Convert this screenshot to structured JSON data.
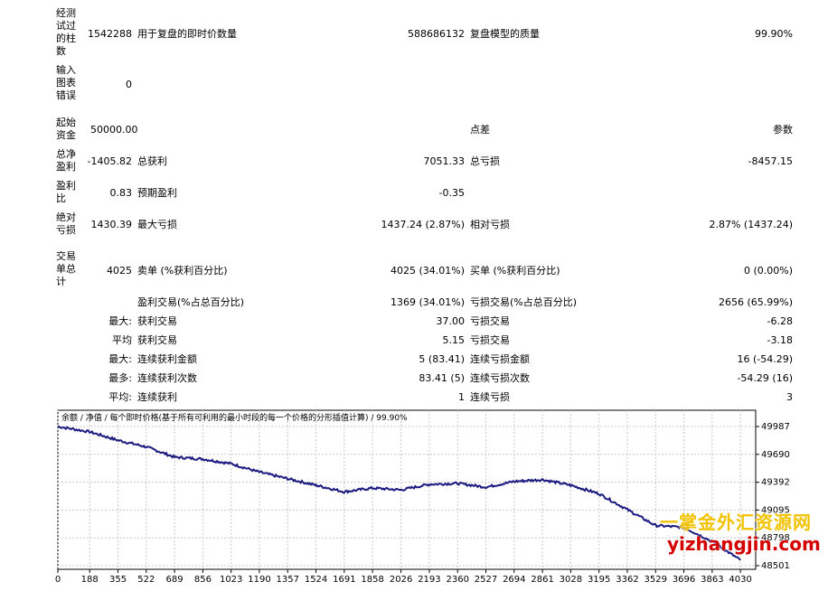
{
  "report": {
    "bars_tested_label": "经测试过的柱数",
    "bars_tested": "1542288",
    "ticks_label": "用于复盘的即时价数量",
    "ticks": "588686132",
    "quality_label": "复盘模型的质量",
    "quality": "99.90%",
    "mismatch_label": "输入图表错误",
    "mismatch": "0",
    "deposit_label": "起始资金",
    "deposit": "50000.00",
    "spread_label": "点差",
    "spread": "参数",
    "net_profit_label": "总净盈利",
    "net_profit": "-1405.82",
    "gross_profit_label": "总获利",
    "gross_profit": "7051.33",
    "gross_loss_label": "总亏损",
    "gross_loss": "-8457.15",
    "profit_factor_label": "盈利比",
    "profit_factor": "0.83",
    "expected_payoff_label": "预期盈利",
    "expected_payoff": "-0.35",
    "abs_drawdown_label": "绝对亏损",
    "abs_drawdown": "1430.39",
    "max_drawdown_label": "最大亏损",
    "max_drawdown": "1437.24 (2.87%)",
    "rel_drawdown_label": "相对亏损",
    "rel_drawdown": "2.87% (1437.24)",
    "total_trades_label": "交易单总计",
    "total_trades": "4025",
    "short_label": "卖单 (%获利百分比)",
    "short": "4025 (34.01%)",
    "long_label": "买单 (%获利百分比)",
    "long": "0 (0.00%)",
    "profit_trades_label": "盈利交易(%占总百分比)",
    "profit_trades": "1369 (34.01%)",
    "loss_trades_label": "亏损交易(%占总百分比)",
    "loss_trades": "2656 (65.99%)",
    "rows": [
      {
        "prefix": "最大:",
        "l1": "获利交易",
        "v1": "37.00",
        "l2": "亏损交易",
        "v2": "-6.28"
      },
      {
        "prefix": "平均",
        "l1": "获利交易",
        "v1": "5.15",
        "l2": "亏损交易",
        "v2": "-3.18"
      },
      {
        "prefix": "最大:",
        "l1": "连续获利金额",
        "v1": "5 (83.41)",
        "l2": "连续亏损金额",
        "v2": "16 (-54.29)"
      },
      {
        "prefix": "最多:",
        "l1": "连续获利次数",
        "v1": "83.41 (5)",
        "l2": "连续亏损次数",
        "v2": "-54.29 (16)"
      },
      {
        "prefix": "平均:",
        "l1": "连续获利",
        "v1": "1",
        "l2": "连续亏损",
        "v2": "3"
      }
    ]
  },
  "chart_header": {
    "balance": "余额",
    "equity": "净值",
    "desc": "每个即时价格(基于所有可利用的最小时段的每一个价格的分形插值计算)",
    "quality": "99.90%",
    "sep": "/"
  },
  "chart_data": {
    "type": "line",
    "series": [
      {
        "name": "余额",
        "color": "#1a1a80"
      }
    ],
    "x": [
      0,
      188,
      355,
      522,
      689,
      856,
      1023,
      1190,
      1357,
      1524,
      1691,
      1858,
      2026,
      2193,
      2360,
      2527,
      2694,
      2861,
      3028,
      3195,
      3362,
      3529,
      3696,
      3863,
      4030
    ],
    "y": [
      49987,
      49930,
      49840,
      49770,
      49660,
      49640,
      49590,
      49500,
      49430,
      49360,
      49290,
      49330,
      49310,
      49370,
      49380,
      49340,
      49400,
      49420,
      49360,
      49270,
      49100,
      48930,
      48910,
      48760,
      48560
    ],
    "xticks": [
      "0",
      "188",
      "355",
      "522",
      "689",
      "856",
      "1023",
      "1190",
      "1357",
      "1524",
      "1691",
      "1858",
      "2026",
      "2193",
      "2360",
      "2527",
      "2694",
      "2861",
      "3028",
      "3195",
      "3362",
      "3529",
      "3696",
      "3863",
      "4030"
    ],
    "yticks": [
      "49987",
      "49690",
      "49392",
      "49095",
      "48798",
      "48501"
    ],
    "ylim": [
      48501,
      49987
    ],
    "xlim": [
      0,
      4120
    ],
    "grid": true
  },
  "watermark": {
    "line1": "一掌金外汇资源网",
    "line2": "yizhangjin.com"
  }
}
